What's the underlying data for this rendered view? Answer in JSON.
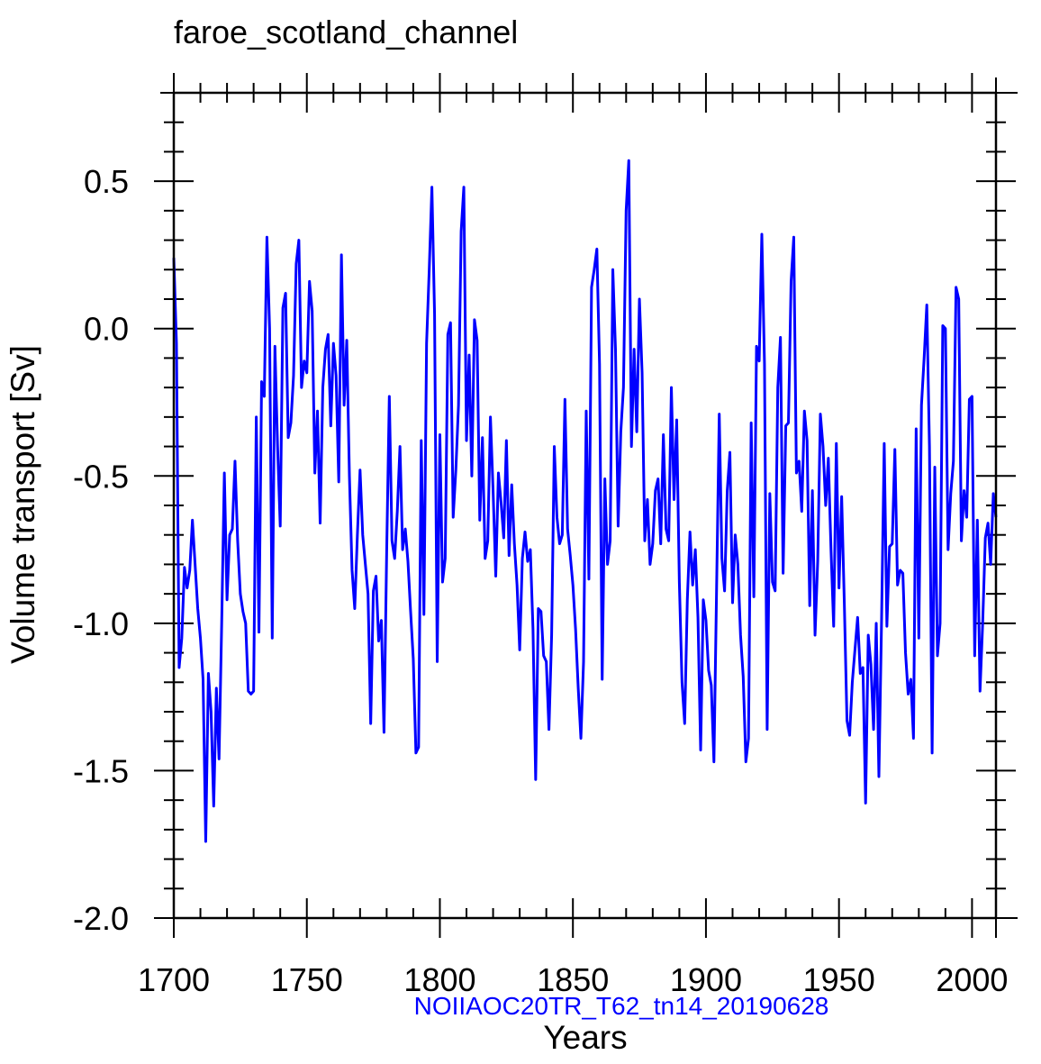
{
  "chart_data": {
    "type": "line",
    "title": "faroe_scotland_channel",
    "xlabel": "Years",
    "ylabel": "Volume transport [Sv]",
    "case_label": "NOIIAOC20TR_T62_tn14_20190628",
    "xlim": [
      1700,
      2009
    ],
    "ylim": [
      -2.0,
      0.8
    ],
    "x_major_ticks": [
      1700,
      1750,
      1800,
      1850,
      1900,
      1950,
      2000
    ],
    "x_tick_labels": [
      "1700",
      "1750",
      "1800",
      "1850",
      "1900",
      "1950",
      "2000"
    ],
    "x_minor_step": 10,
    "y_major_ticks": [
      -2.0,
      -1.5,
      -1.0,
      -0.5,
      0.0,
      0.5
    ],
    "y_tick_labels": [
      "-2.0",
      "-1.5",
      "-1.0",
      "-0.5",
      "0.0",
      "0.5"
    ],
    "y_minor_step": 0.1,
    "grid": false,
    "colors": {
      "series": "#0000ff",
      "case_label": "#0000ff",
      "axes": "#000000"
    },
    "series": [
      {
        "name": "faroe_scotland_channel",
        "x_start": 1700,
        "x_step": 1,
        "values": [
          0.24,
          -0.05,
          -1.15,
          -1.05,
          -0.81,
          -0.88,
          -0.82,
          -0.65,
          -0.8,
          -0.95,
          -1.05,
          -1.19,
          -1.74,
          -1.17,
          -1.3,
          -1.62,
          -1.22,
          -1.46,
          -1.0,
          -0.49,
          -0.92,
          -0.7,
          -0.68,
          -0.45,
          -0.72,
          -0.9,
          -0.96,
          -1.0,
          -1.23,
          -1.24,
          -1.23,
          -0.3,
          -1.03,
          -0.18,
          -0.23,
          0.31,
          0.0,
          -1.05,
          -0.06,
          -0.4,
          -0.67,
          0.07,
          0.12,
          -0.37,
          -0.32,
          -0.16,
          0.22,
          0.3,
          -0.2,
          -0.11,
          -0.15,
          0.16,
          0.06,
          -0.49,
          -0.28,
          -0.66,
          -0.2,
          -0.07,
          -0.02,
          -0.33,
          -0.05,
          -0.16,
          -0.52,
          0.25,
          -0.26,
          -0.04,
          -0.5,
          -0.82,
          -0.95,
          -0.7,
          -0.48,
          -0.7,
          -0.8,
          -0.9,
          -1.34,
          -0.89,
          -0.84,
          -1.06,
          -0.99,
          -1.37,
          -0.76,
          -0.23,
          -0.72,
          -0.78,
          -0.62,
          -0.4,
          -0.75,
          -0.68,
          -0.79,
          -0.96,
          -1.12,
          -1.44,
          -1.42,
          -0.38,
          -0.97,
          -0.05,
          0.2,
          0.48,
          0.05,
          -1.13,
          -0.36,
          -0.86,
          -0.78,
          -0.02,
          0.02,
          -0.64,
          -0.48,
          -0.26,
          0.33,
          0.48,
          -0.38,
          -0.09,
          -0.5,
          0.03,
          -0.04,
          -0.65,
          -0.37,
          -0.78,
          -0.72,
          -0.3,
          -0.55,
          -0.84,
          -0.49,
          -0.59,
          -0.71,
          -0.38,
          -0.77,
          -0.53,
          -0.73,
          -0.87,
          -1.09,
          -0.78,
          -0.69,
          -0.79,
          -0.75,
          -1.02,
          -1.53,
          -0.95,
          -0.96,
          -1.11,
          -1.13,
          -1.36,
          -1.04,
          -0.4,
          -0.64,
          -0.73,
          -0.7,
          -0.24,
          -0.68,
          -0.77,
          -0.87,
          -1.02,
          -1.22,
          -1.39,
          -1.13,
          -0.28,
          -0.85,
          0.14,
          0.2,
          0.27,
          -0.12,
          -1.19,
          -0.51,
          -0.8,
          -0.72,
          0.2,
          -0.07,
          -0.67,
          -0.35,
          -0.2,
          0.4,
          0.57,
          -0.4,
          -0.07,
          -0.35,
          0.1,
          -0.15,
          -0.72,
          -0.58,
          -0.8,
          -0.73,
          -0.55,
          -0.51,
          -0.73,
          -0.36,
          -0.68,
          -0.72,
          -0.2,
          -0.58,
          -0.31,
          -0.86,
          -1.2,
          -1.34,
          -0.92,
          -0.69,
          -0.87,
          -0.75,
          -0.98,
          -1.43,
          -0.92,
          -0.99,
          -1.16,
          -1.21,
          -1.47,
          -0.88,
          -0.29,
          -0.78,
          -0.89,
          -0.55,
          -0.42,
          -0.93,
          -0.7,
          -0.8,
          -1.04,
          -1.18,
          -1.47,
          -1.39,
          -0.32,
          -0.91,
          -0.06,
          -0.11,
          0.32,
          -0.12,
          -1.36,
          -0.56,
          -0.86,
          -0.89,
          -0.2,
          -0.03,
          -0.83,
          -0.33,
          -0.32,
          0.16,
          0.31,
          -0.49,
          -0.45,
          -0.62,
          -0.28,
          -0.38,
          -0.94,
          -0.55,
          -1.04,
          -0.79,
          -0.29,
          -0.4,
          -0.6,
          -0.44,
          -0.75,
          -1.01,
          -0.39,
          -0.88,
          -0.57,
          -0.93,
          -1.33,
          -1.38,
          -1.2,
          -1.09,
          -0.98,
          -1.17,
          -1.15,
          -1.61,
          -1.04,
          -1.14,
          -1.36,
          -1.0,
          -1.52,
          -0.99,
          -0.39,
          -1.01,
          -0.74,
          -0.73,
          -0.41,
          -0.87,
          -0.82,
          -0.83,
          -1.1,
          -1.24,
          -1.19,
          -1.39,
          -0.34,
          -1.05,
          -0.26,
          -0.1,
          0.08,
          -0.4,
          -1.44,
          -0.47,
          -1.11,
          -1.0,
          0.01,
          0.0,
          -0.75,
          -0.56,
          -0.45,
          0.14,
          0.1,
          -0.72,
          -0.55,
          -0.64,
          -0.24,
          -0.23,
          -1.11,
          -0.65,
          -1.23,
          -1.0,
          -0.71,
          -0.66,
          -0.8,
          -0.56,
          -0.64
        ]
      }
    ]
  }
}
